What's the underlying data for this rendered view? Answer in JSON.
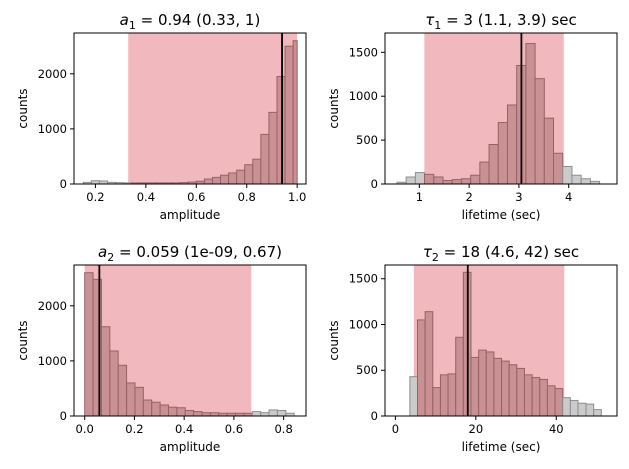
{
  "chart_data": [
    {
      "type": "bar",
      "title": "a₁ = 0.94 (0.33, 1)",
      "title_parts": [
        "a",
        "1",
        " = 0.94 (0.33, 1)"
      ],
      "xlabel": "amplitude",
      "ylabel": "counts",
      "xlim": [
        0.115,
        1.035
      ],
      "ylim": [
        0,
        2740
      ],
      "xticks": [
        0.2,
        0.4,
        0.6,
        0.8,
        1.0
      ],
      "xtick_labels": [
        "0.2",
        "0.4",
        "0.6",
        "0.8",
        "1.0"
      ],
      "yticks": [
        0,
        1000,
        2000
      ],
      "ytick_labels": [
        "0",
        "1000",
        "2000"
      ],
      "bin_edges": [
        0.152,
        0.184,
        0.216,
        0.248,
        0.28,
        0.312,
        0.344,
        0.376,
        0.408,
        0.44,
        0.472,
        0.504,
        0.536,
        0.568,
        0.6,
        0.632,
        0.664,
        0.696,
        0.728,
        0.76,
        0.792,
        0.824,
        0.856,
        0.888,
        0.92,
        0.952,
        0.984,
        1.0
      ],
      "counts": [
        30,
        60,
        55,
        30,
        25,
        20,
        20,
        20,
        20,
        20,
        20,
        20,
        25,
        35,
        50,
        90,
        120,
        160,
        200,
        250,
        350,
        450,
        900,
        1300,
        1950,
        2500,
        2600
      ],
      "credible_interval": [
        0.33,
        1.0
      ],
      "estimate": 0.94
    },
    {
      "type": "bar",
      "title": "τ₁ = 3 (1.1, 3.9) sec",
      "title_parts": [
        "τ",
        "1",
        " = 3 (1.1, 3.9) sec"
      ],
      "xlabel": "lifetime (sec)",
      "ylabel": "counts",
      "xlim": [
        0.31,
        4.97
      ],
      "ylim": [
        0,
        1720
      ],
      "xticks": [
        1,
        2,
        3,
        4
      ],
      "xtick_labels": [
        "1",
        "2",
        "3",
        "4"
      ],
      "yticks": [
        0,
        500,
        1000,
        1500
      ],
      "ytick_labels": [
        "0",
        "500",
        "1000",
        "1500"
      ],
      "bin_edges": [
        0.55,
        0.735,
        0.92,
        1.105,
        1.29,
        1.475,
        1.66,
        1.845,
        2.03,
        2.215,
        2.4,
        2.585,
        2.77,
        2.955,
        3.14,
        3.325,
        3.51,
        3.695,
        3.88,
        4.065,
        4.25,
        4.435,
        4.62
      ],
      "counts": [
        20,
        80,
        130,
        110,
        80,
        40,
        50,
        60,
        100,
        250,
        450,
        700,
        900,
        1350,
        1600,
        1200,
        750,
        350,
        200,
        100,
        60,
        30
      ],
      "credible_interval": [
        1.1,
        3.9
      ],
      "estimate": 3.05
    },
    {
      "type": "bar",
      "title": "a₂ = 0.059 (1e-09, 0.67)",
      "title_parts": [
        "a",
        "2",
        " = 0.059 (1e-09, 0.67)"
      ],
      "xlabel": "amplitude",
      "ylabel": "counts",
      "xlim": [
        -0.043,
        0.89
      ],
      "ylim": [
        0,
        2740
      ],
      "xticks": [
        0.0,
        0.2,
        0.4,
        0.6,
        0.8
      ],
      "xtick_labels": [
        "0.0",
        "0.2",
        "0.4",
        "0.6",
        "0.8"
      ],
      "yticks": [
        0,
        1000,
        2000
      ],
      "ytick_labels": [
        "0",
        "1000",
        "2000"
      ],
      "bin_edges": [
        0.0,
        0.0337,
        0.0674,
        0.1011,
        0.1348,
        0.1685,
        0.2022,
        0.2359,
        0.2696,
        0.3033,
        0.337,
        0.3707,
        0.4044,
        0.4381,
        0.4718,
        0.5055,
        0.5392,
        0.5729,
        0.6066,
        0.6403,
        0.674,
        0.7077,
        0.7414,
        0.7751,
        0.8088,
        0.8425
      ],
      "counts": [
        2600,
        2480,
        1620,
        1180,
        920,
        600,
        520,
        290,
        250,
        200,
        160,
        150,
        100,
        80,
        60,
        60,
        50,
        50,
        50,
        50,
        80,
        60,
        110,
        100,
        50
      ],
      "credible_interval": [
        0.0,
        0.67
      ],
      "estimate": 0.059
    },
    {
      "type": "bar",
      "title": "τ₂ = 18 (4.6, 42) sec",
      "title_parts": [
        "τ",
        "2",
        " = 18 (4.6, 42) sec"
      ],
      "xlabel": "lifetime (sec)",
      "ylabel": "counts",
      "xlim": [
        -2.58,
        55.1
      ],
      "ylim": [
        0,
        1650
      ],
      "xticks": [
        0,
        20,
        40
      ],
      "xtick_labels": [
        "0",
        "20",
        "40"
      ],
      "yticks": [
        0,
        500,
        1000,
        1500
      ],
      "ytick_labels": [
        "0",
        "500",
        "1000",
        "1500"
      ],
      "bin_edges": [
        3.6,
        5.5,
        7.4,
        9.3,
        11.2,
        13.1,
        15.0,
        16.9,
        18.8,
        20.7,
        22.6,
        24.5,
        26.4,
        28.3,
        30.2,
        32.1,
        34.0,
        35.9,
        37.8,
        39.7,
        41.6,
        43.5,
        45.4,
        47.4,
        49.3,
        51.2
      ],
      "counts": [
        430,
        1050,
        1140,
        310,
        450,
        460,
        860,
        1570,
        640,
        720,
        700,
        630,
        600,
        560,
        520,
        450,
        420,
        400,
        330,
        300,
        200,
        170,
        140,
        130,
        70
      ],
      "credible_interval": [
        4.6,
        42.0
      ],
      "estimate": 18.0
    }
  ],
  "colors": {
    "interval_fill": "#f1b9bd",
    "bar_in_fill": "#c99194",
    "bar_in_edge": "#9a6164",
    "bar_out_fill": "#cbcbcb",
    "bar_out_edge": "#8e8e8e",
    "estimate_line": "#000000",
    "axis": "#000000"
  }
}
